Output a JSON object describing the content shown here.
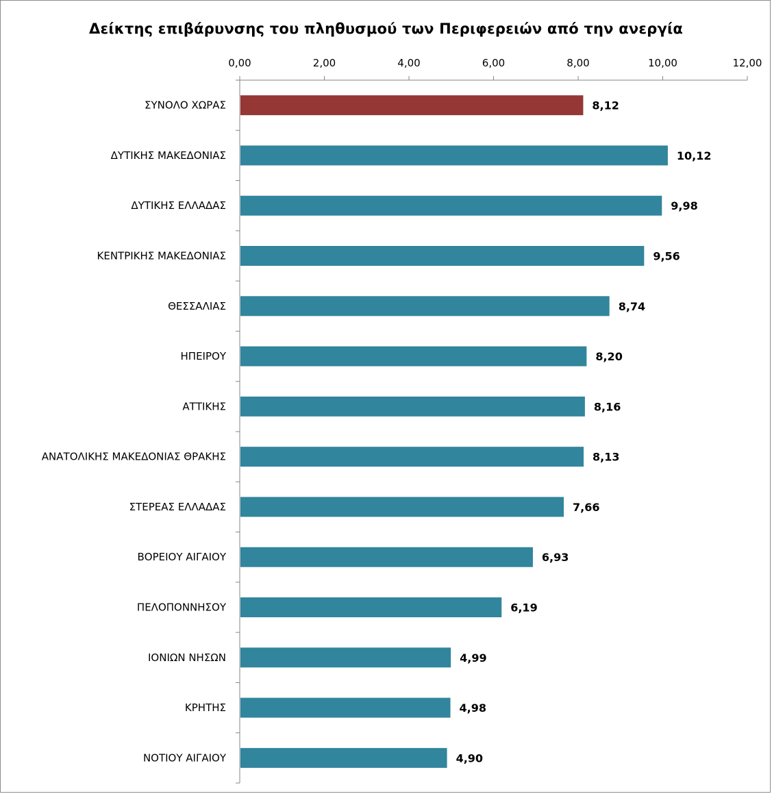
{
  "chart_data": {
    "type": "bar",
    "orientation": "horizontal",
    "title": "Δείκτης επιβάρυνσης του πληθυσμού των Περιφερειών  από την ανεργία",
    "categories": [
      "ΣΥΝΟΛΟ ΧΩΡΑΣ",
      "ΔΥΤΙΚΗΣ ΜΑΚΕΔΟΝΙΑΣ",
      "ΔΥΤΙΚΗΣ ΕΛΛΑΔΑΣ",
      "ΚΕΝΤΡΙΚΗΣ ΜΑΚΕΔΟΝΙΑΣ",
      "ΘΕΣΣΑΛΙΑΣ",
      "ΗΠΕΙΡΟΥ",
      "ΑΤΤΙΚΗΣ",
      "ΑΝΑΤΟΛΙΚΗΣ ΜΑΚΕΔΟΝΙΑΣ ΘΡΑΚΗΣ",
      "ΣΤΕΡΕΑΣ ΕΛΛΑΔΑΣ",
      "ΒΟΡΕΙΟΥ ΑΙΓΑΙΟΥ",
      "ΠΕΛΟΠΟΝΝΗΣΟΥ",
      "ΙΟΝΙΩΝ ΝΗΣΩΝ",
      "ΚΡΗΤΗΣ",
      "ΝΟΤΙΟΥ ΑΙΓΑΙΟΥ"
    ],
    "values": [
      8.12,
      10.12,
      9.98,
      9.56,
      8.74,
      8.2,
      8.16,
      8.13,
      7.66,
      6.93,
      6.19,
      4.99,
      4.98,
      4.9
    ],
    "value_labels": [
      "8,12",
      "10,12",
      "9,98",
      "9,56",
      "8,74",
      "8,20",
      "8,16",
      "8,13",
      "7,66",
      "6,93",
      "6,19",
      "4,99",
      "4,98",
      "4,90"
    ],
    "x_ticks": [
      "0,00",
      "2,00",
      "4,00",
      "6,00",
      "8,00",
      "10,00",
      "12,00"
    ],
    "xlim": [
      0,
      12
    ],
    "xaxis_position": "top",
    "grid": false,
    "legend": "none",
    "colors": {
      "highlight": "#953735",
      "default": "#31859C",
      "axis": "#868686"
    },
    "highlight_index": 0
  }
}
